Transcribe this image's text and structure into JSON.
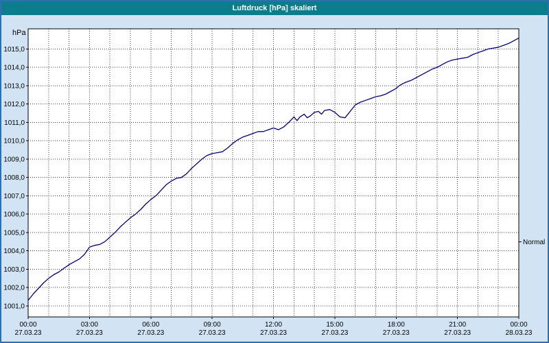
{
  "window": {
    "title": "Luftdruck [hPa] skaliert"
  },
  "colors": {
    "titlebar": "#0b7d8d",
    "title_text": "#ffffff",
    "window_bg": "#d2e4f4",
    "border": "#2e6fad",
    "plot_bg": "#ffffff",
    "grid": "#404040",
    "axis": "#000000",
    "line": "#000080",
    "text": "#000000"
  },
  "chart_data": {
    "type": "line",
    "title": "Luftdruck [hPa] skaliert",
    "ylabel": "hPa",
    "xlabel": "",
    "grid": "dotted, hourly vertical, 1 hPa horizontal",
    "legend_position": "none",
    "xlim": [
      0,
      24
    ],
    "ylim": [
      1000.4,
      1016.1
    ],
    "y_ticks": {
      "values": [
        1001,
        1002,
        1003,
        1004,
        1005,
        1006,
        1007,
        1008,
        1009,
        1010,
        1011,
        1012,
        1013,
        1014,
        1015
      ],
      "labels": [
        "1001,0",
        "1002,0",
        "1003,0",
        "1004,0",
        "1005,0",
        "1006,0",
        "1007,0",
        "1008,0",
        "1009,0",
        "1010,0",
        "1011,0",
        "1012,0",
        "1013,0",
        "1014,0",
        "1015,0"
      ]
    },
    "x_ticks": {
      "hours": [
        0,
        3,
        6,
        9,
        12,
        15,
        18,
        21,
        24
      ],
      "times": [
        "00:00",
        "03:00",
        "06:00",
        "09:00",
        "12:00",
        "15:00",
        "18:00",
        "21:00",
        "00:00"
      ],
      "dates": [
        "27.03.23",
        "27.03.23",
        "27.03.23",
        "27.03.23",
        "27.03.23",
        "27.03.23",
        "27.03.23",
        "27.03.23",
        "28.03.23"
      ]
    },
    "minor_x_grid_every_hours": 1,
    "annotation": {
      "label": "Normal",
      "value": 1004.5
    },
    "series": [
      {
        "name": "Luftdruck",
        "x": [
          0,
          0.25,
          0.5,
          0.75,
          1,
          1.25,
          1.5,
          1.75,
          2,
          2.25,
          2.5,
          2.75,
          3,
          3.25,
          3.5,
          3.75,
          4,
          4.25,
          4.5,
          4.75,
          5,
          5.25,
          5.5,
          5.75,
          6,
          6.25,
          6.5,
          6.75,
          7,
          7.25,
          7.5,
          7.75,
          8,
          8.25,
          8.5,
          8.75,
          9,
          9.25,
          9.5,
          9.75,
          10,
          10.25,
          10.5,
          10.75,
          11,
          11.25,
          11.5,
          11.75,
          12,
          12.25,
          12.5,
          12.75,
          13,
          13.15,
          13.3,
          13.5,
          13.65,
          13.8,
          14,
          14.2,
          14.35,
          14.5,
          14.75,
          15,
          15.25,
          15.5,
          15.75,
          16,
          16.25,
          16.5,
          16.75,
          17,
          17.25,
          17.5,
          17.75,
          18,
          18.15,
          18.3,
          18.5,
          18.75,
          19,
          19.25,
          19.5,
          19.75,
          20,
          20.25,
          20.5,
          20.75,
          21,
          21.25,
          21.5,
          21.75,
          22,
          22.25,
          22.5,
          22.75,
          23,
          23.25,
          23.5,
          23.75,
          24
        ],
        "values": [
          1001.3,
          1001.65,
          1001.95,
          1002.25,
          1002.5,
          1002.7,
          1002.85,
          1003.05,
          1003.25,
          1003.4,
          1003.55,
          1003.8,
          1004.2,
          1004.3,
          1004.35,
          1004.5,
          1004.75,
          1005.0,
          1005.3,
          1005.55,
          1005.8,
          1006.0,
          1006.25,
          1006.55,
          1006.8,
          1007.0,
          1007.3,
          1007.6,
          1007.8,
          1007.95,
          1008.0,
          1008.2,
          1008.5,
          1008.75,
          1009.0,
          1009.2,
          1009.3,
          1009.35,
          1009.4,
          1009.6,
          1009.85,
          1010.05,
          1010.2,
          1010.3,
          1010.4,
          1010.5,
          1010.5,
          1010.6,
          1010.7,
          1010.6,
          1010.75,
          1011.0,
          1011.3,
          1011.1,
          1011.3,
          1011.45,
          1011.25,
          1011.35,
          1011.55,
          1011.6,
          1011.45,
          1011.65,
          1011.7,
          1011.55,
          1011.3,
          1011.25,
          1011.6,
          1011.95,
          1012.1,
          1012.2,
          1012.3,
          1012.4,
          1012.45,
          1012.55,
          1012.7,
          1012.85,
          1013.0,
          1013.1,
          1013.2,
          1013.3,
          1013.45,
          1013.6,
          1013.75,
          1013.9,
          1014.0,
          1014.15,
          1014.3,
          1014.4,
          1014.45,
          1014.5,
          1014.55,
          1014.7,
          1014.8,
          1014.9,
          1015.0,
          1015.05,
          1015.1,
          1015.2,
          1015.3,
          1015.45,
          1015.6
        ]
      }
    ]
  }
}
